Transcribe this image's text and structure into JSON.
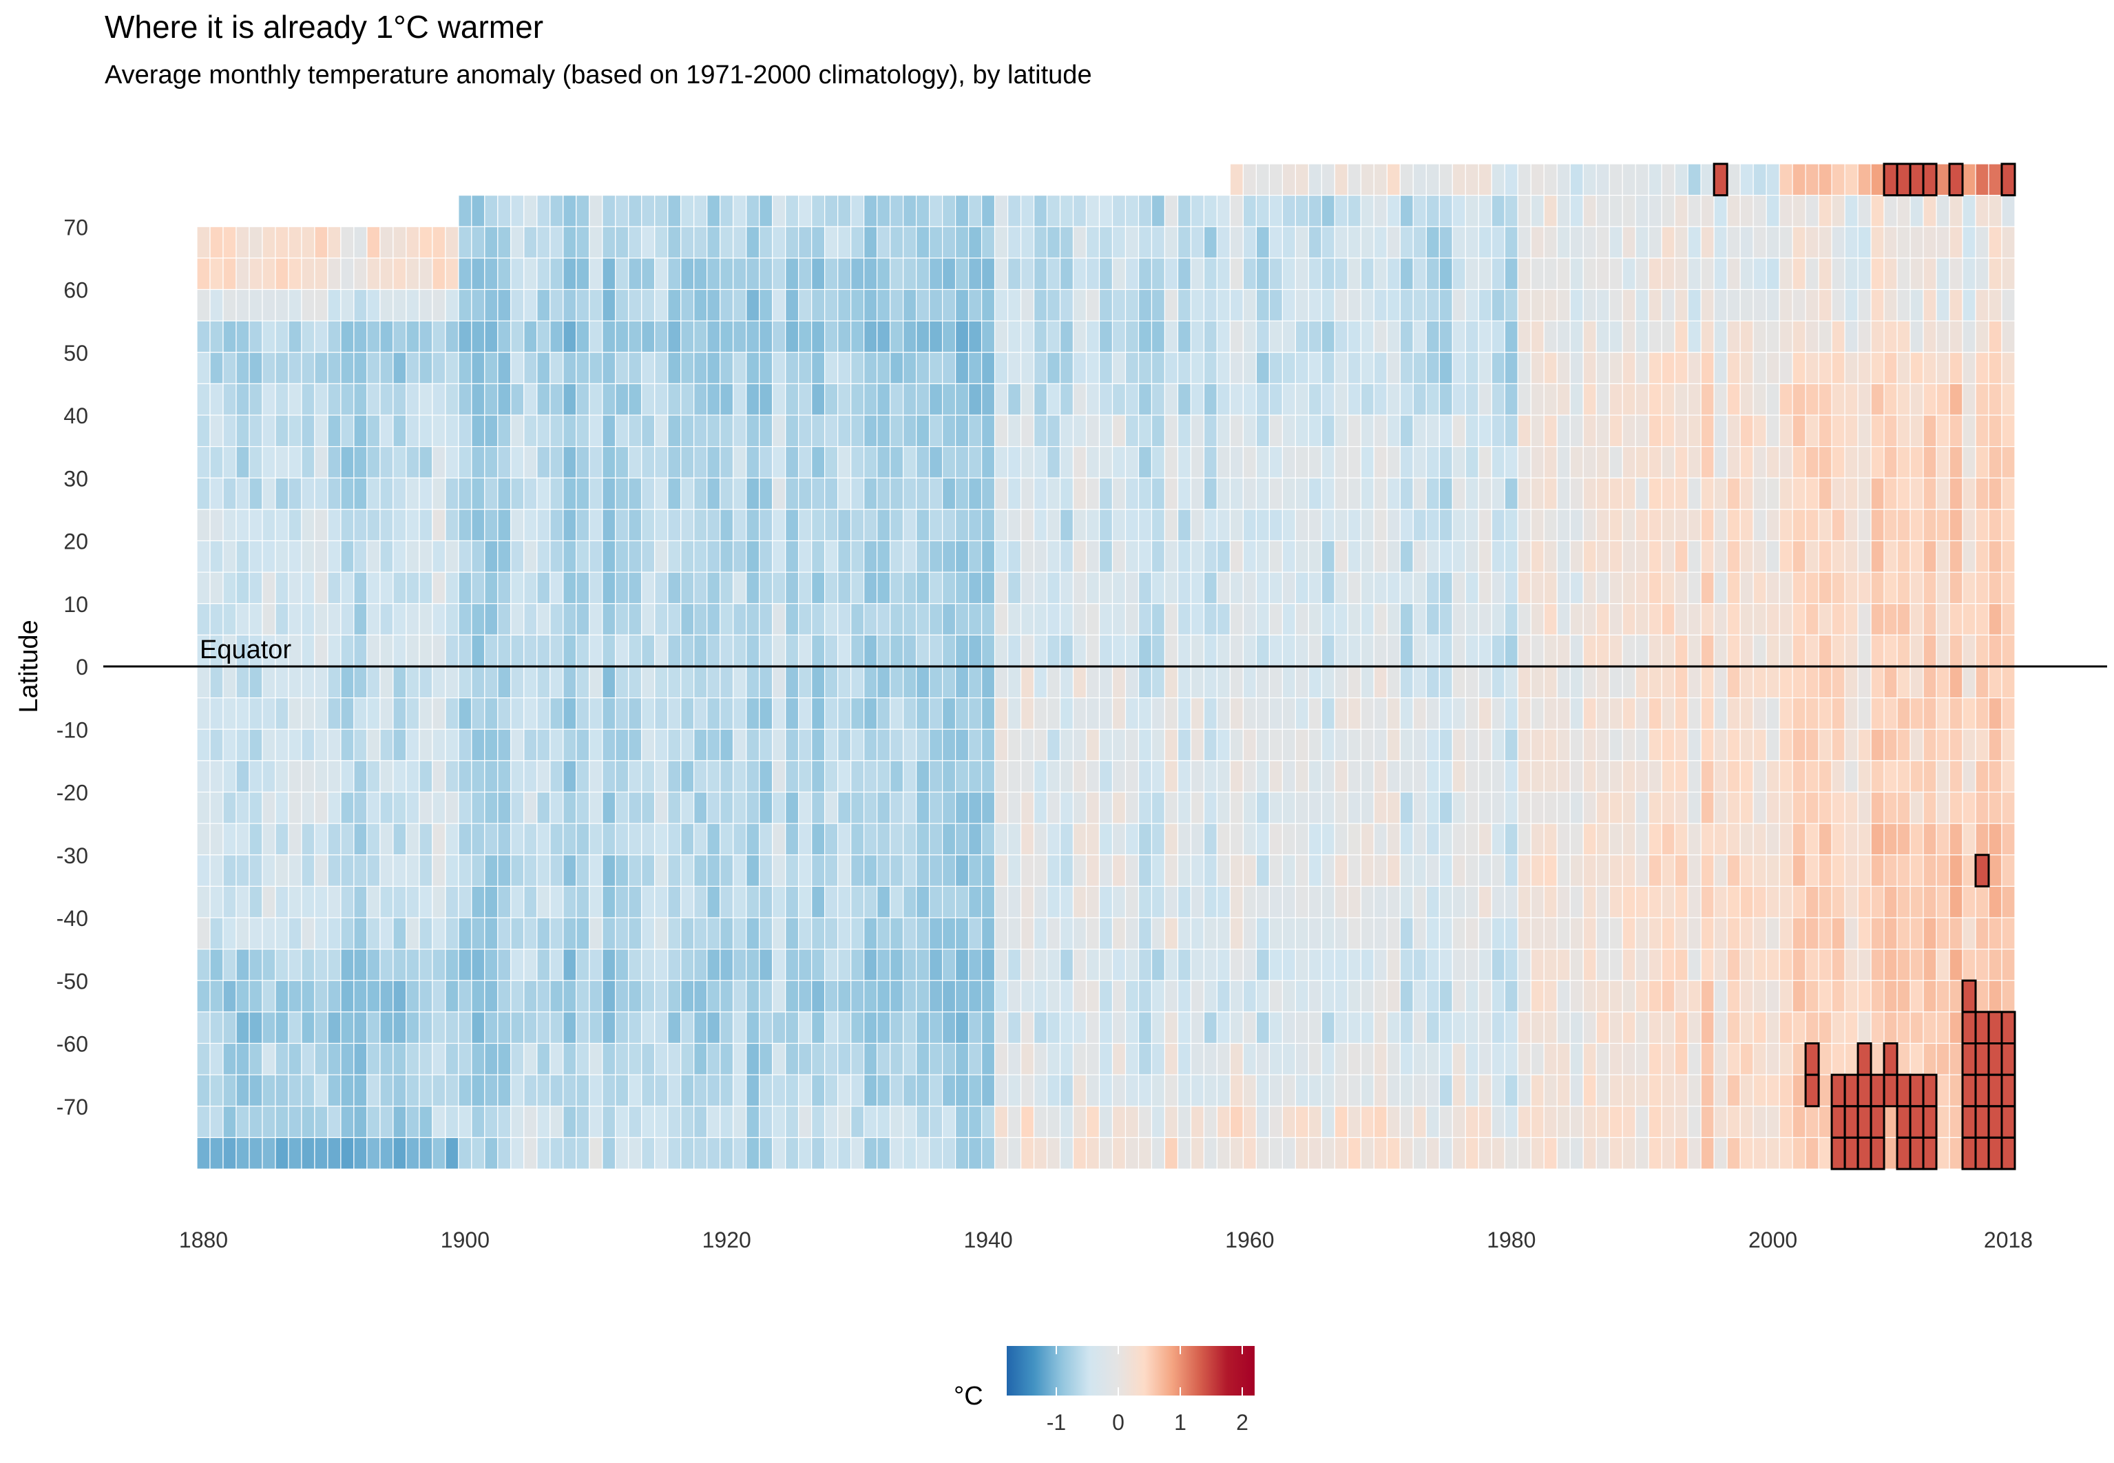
{
  "chart_data": {
    "type": "heatmap",
    "title": "Where it is already 1°C warmer",
    "subtitle": "Average monthly temperature anomaly (based on 1971-2000 climatology), by latitude",
    "xlabel": "",
    "ylabel": "Latitude",
    "x_ticks": [
      1880,
      1900,
      1920,
      1940,
      1960,
      1980,
      2000,
      2018
    ],
    "y_ticks": [
      70,
      60,
      50,
      40,
      30,
      20,
      10,
      0,
      -10,
      -20,
      -30,
      -40,
      -50,
      -60,
      -70
    ],
    "xlim": [
      1880,
      2018
    ],
    "ylim": [
      -80,
      80
    ],
    "year_range": [
      1880,
      2018
    ],
    "latitude_band_centers": [
      77.5,
      72.5,
      67.5,
      62.5,
      57.5,
      52.5,
      47.5,
      42.5,
      37.5,
      32.5,
      27.5,
      22.5,
      17.5,
      12.5,
      7.5,
      2.5,
      -2.5,
      -7.5,
      -12.5,
      -17.5,
      -22.5,
      -27.5,
      -32.5,
      -37.5,
      -42.5,
      -47.5,
      -52.5,
      -57.5,
      -62.5,
      -67.5,
      -72.5,
      -77.5
    ],
    "anomaly_by_band": [
      {
        "lat": 77.5,
        "period_means": [
          [
            1880,
            1958,
            null
          ],
          [
            1959,
            1985,
            0.0
          ],
          [
            1986,
            2000,
            -0.2
          ],
          [
            2001,
            2018,
            1.0
          ]
        ]
      },
      {
        "lat": 72.5,
        "period_means": [
          [
            1880,
            1899,
            null
          ],
          [
            1900,
            1940,
            -0.4
          ],
          [
            1941,
            1980,
            -0.3
          ],
          [
            1981,
            2018,
            0.0
          ]
        ]
      },
      {
        "lat": 67.5,
        "period_means": [
          [
            1880,
            1899,
            0.2
          ],
          [
            1900,
            1940,
            -0.4
          ],
          [
            1941,
            1980,
            -0.3
          ],
          [
            1981,
            2018,
            0.0
          ]
        ]
      },
      {
        "lat": 62.5,
        "period_means": [
          [
            1880,
            1899,
            0.2
          ],
          [
            1900,
            1940,
            -0.5
          ],
          [
            1941,
            1980,
            -0.3
          ],
          [
            1981,
            2018,
            0.0
          ]
        ]
      },
      {
        "lat": 57.5,
        "period_means": [
          [
            1880,
            1899,
            -0.2
          ],
          [
            1900,
            1940,
            -0.5
          ],
          [
            1941,
            1980,
            -0.3
          ],
          [
            1981,
            2018,
            0.0
          ]
        ]
      },
      {
        "lat": 52.5,
        "period_means": [
          [
            1880,
            1899,
            -0.5
          ],
          [
            1900,
            1940,
            -0.6
          ],
          [
            1941,
            1980,
            -0.3
          ],
          [
            1981,
            2018,
            0.1
          ]
        ]
      },
      {
        "lat": 47.5,
        "period_means": [
          [
            1880,
            1899,
            -0.5
          ],
          [
            1900,
            1940,
            -0.5
          ],
          [
            1941,
            1980,
            -0.3
          ],
          [
            1981,
            2018,
            0.2
          ]
        ]
      },
      {
        "lat": 42.5,
        "period_means": [
          [
            1880,
            1899,
            -0.4
          ],
          [
            1900,
            1940,
            -0.5
          ],
          [
            1941,
            1980,
            -0.3
          ],
          [
            1981,
            2018,
            0.3
          ]
        ]
      },
      {
        "lat": 37.5,
        "period_means": [
          [
            1880,
            1899,
            -0.4
          ],
          [
            1900,
            1940,
            -0.4
          ],
          [
            1941,
            1980,
            -0.2
          ],
          [
            1981,
            2018,
            0.3
          ]
        ]
      },
      {
        "lat": 32.5,
        "period_means": [
          [
            1880,
            1899,
            -0.4
          ],
          [
            1900,
            1940,
            -0.4
          ],
          [
            1941,
            1980,
            -0.2
          ],
          [
            1981,
            2018,
            0.3
          ]
        ]
      },
      {
        "lat": 27.5,
        "period_means": [
          [
            1880,
            1899,
            -0.4
          ],
          [
            1900,
            1940,
            -0.4
          ],
          [
            1941,
            1980,
            -0.2
          ],
          [
            1981,
            2018,
            0.3
          ]
        ]
      },
      {
        "lat": 22.5,
        "period_means": [
          [
            1880,
            1899,
            -0.3
          ],
          [
            1900,
            1940,
            -0.4
          ],
          [
            1941,
            1980,
            -0.2
          ],
          [
            1981,
            2018,
            0.3
          ]
        ]
      },
      {
        "lat": 17.5,
        "period_means": [
          [
            1880,
            1899,
            -0.3
          ],
          [
            1900,
            1940,
            -0.4
          ],
          [
            1941,
            1980,
            -0.2
          ],
          [
            1981,
            2018,
            0.3
          ]
        ]
      },
      {
        "lat": 12.5,
        "period_means": [
          [
            1880,
            1899,
            -0.3
          ],
          [
            1900,
            1940,
            -0.4
          ],
          [
            1941,
            1980,
            -0.2
          ],
          [
            1981,
            2018,
            0.3
          ]
        ]
      },
      {
        "lat": 7.5,
        "period_means": [
          [
            1880,
            1899,
            -0.3
          ],
          [
            1900,
            1940,
            -0.4
          ],
          [
            1941,
            1980,
            -0.2
          ],
          [
            1981,
            2018,
            0.3
          ]
        ]
      },
      {
        "lat": 2.5,
        "period_means": [
          [
            1880,
            1899,
            -0.3
          ],
          [
            1900,
            1940,
            -0.4
          ],
          [
            1941,
            1980,
            -0.2
          ],
          [
            1981,
            2018,
            0.3
          ]
        ]
      },
      {
        "lat": -2.5,
        "period_means": [
          [
            1880,
            1899,
            -0.3
          ],
          [
            1900,
            1940,
            -0.4
          ],
          [
            1941,
            1980,
            -0.1
          ],
          [
            1981,
            2018,
            0.3
          ]
        ]
      },
      {
        "lat": -7.5,
        "period_means": [
          [
            1880,
            1899,
            -0.3
          ],
          [
            1900,
            1940,
            -0.4
          ],
          [
            1941,
            1980,
            -0.1
          ],
          [
            1981,
            2018,
            0.3
          ]
        ]
      },
      {
        "lat": -12.5,
        "period_means": [
          [
            1880,
            1899,
            -0.3
          ],
          [
            1900,
            1940,
            -0.4
          ],
          [
            1941,
            1980,
            -0.1
          ],
          [
            1981,
            2018,
            0.3
          ]
        ]
      },
      {
        "lat": -17.5,
        "period_means": [
          [
            1880,
            1899,
            -0.3
          ],
          [
            1900,
            1940,
            -0.4
          ],
          [
            1941,
            1980,
            -0.1
          ],
          [
            1981,
            2018,
            0.3
          ]
        ]
      },
      {
        "lat": -22.5,
        "period_means": [
          [
            1880,
            1899,
            -0.3
          ],
          [
            1900,
            1940,
            -0.4
          ],
          [
            1941,
            1980,
            -0.1
          ],
          [
            1981,
            2018,
            0.3
          ]
        ]
      },
      {
        "lat": -27.5,
        "period_means": [
          [
            1880,
            1899,
            -0.3
          ],
          [
            1900,
            1940,
            -0.4
          ],
          [
            1941,
            1980,
            -0.1
          ],
          [
            1981,
            2018,
            0.4
          ]
        ]
      },
      {
        "lat": -32.5,
        "period_means": [
          [
            1880,
            1899,
            -0.3
          ],
          [
            1900,
            1940,
            -0.4
          ],
          [
            1941,
            1980,
            -0.1
          ],
          [
            1981,
            2018,
            0.4
          ]
        ]
      },
      {
        "lat": -37.5,
        "period_means": [
          [
            1880,
            1899,
            -0.3
          ],
          [
            1900,
            1940,
            -0.4
          ],
          [
            1941,
            1980,
            -0.1
          ],
          [
            1981,
            2018,
            0.4
          ]
        ]
      },
      {
        "lat": -42.5,
        "period_means": [
          [
            1880,
            1899,
            -0.3
          ],
          [
            1900,
            1940,
            -0.4
          ],
          [
            1941,
            1980,
            -0.1
          ],
          [
            1981,
            2018,
            0.4
          ]
        ]
      },
      {
        "lat": -47.5,
        "period_means": [
          [
            1880,
            1899,
            -0.5
          ],
          [
            1900,
            1940,
            -0.5
          ],
          [
            1941,
            1980,
            -0.2
          ],
          [
            1981,
            2018,
            0.4
          ]
        ]
      },
      {
        "lat": -52.5,
        "period_means": [
          [
            1880,
            1899,
            -0.6
          ],
          [
            1900,
            1940,
            -0.5
          ],
          [
            1941,
            1980,
            -0.2
          ],
          [
            1981,
            2018,
            0.4
          ]
        ]
      },
      {
        "lat": -57.5,
        "period_means": [
          [
            1880,
            1899,
            -0.6
          ],
          [
            1900,
            1940,
            -0.5
          ],
          [
            1941,
            1980,
            -0.2
          ],
          [
            1981,
            2018,
            0.4
          ]
        ]
      },
      {
        "lat": -62.5,
        "period_means": [
          [
            1880,
            1899,
            -0.5
          ],
          [
            1900,
            1940,
            -0.4
          ],
          [
            1941,
            1980,
            -0.1
          ],
          [
            1981,
            2018,
            0.4
          ]
        ]
      },
      {
        "lat": -67.5,
        "period_means": [
          [
            1880,
            1899,
            -0.5
          ],
          [
            1900,
            1940,
            -0.4
          ],
          [
            1941,
            1980,
            -0.1
          ],
          [
            1981,
            2018,
            0.4
          ]
        ]
      },
      {
        "lat": -72.5,
        "period_means": [
          [
            1880,
            1899,
            -0.5
          ],
          [
            1900,
            1940,
            -0.3
          ],
          [
            1941,
            1980,
            0.1
          ],
          [
            1981,
            2018,
            0.4
          ]
        ]
      },
      {
        "lat": -77.5,
        "period_means": [
          [
            1880,
            1899,
            -0.9
          ],
          [
            1900,
            1940,
            -0.3
          ],
          [
            1941,
            1980,
            0.1
          ],
          [
            1981,
            2018,
            0.4
          ]
        ]
      }
    ],
    "warm_cells_outlined": [
      {
        "lat": 77.5,
        "years": [
          1996,
          2009,
          2010,
          2011,
          2012,
          2014,
          2018
        ]
      },
      {
        "lat": -32.5,
        "years": [
          2016
        ]
      },
      {
        "lat": -52.5,
        "years": [
          2015
        ]
      },
      {
        "lat": -57.5,
        "years": [
          2015,
          2016,
          2017,
          2018
        ]
      },
      {
        "lat": -62.5,
        "years": [
          2003,
          2007,
          2009,
          2015,
          2016,
          2017,
          2018
        ]
      },
      {
        "lat": -67.5,
        "years": [
          2003,
          2005,
          2006,
          2007,
          2008,
          2009,
          2010,
          2011,
          2012,
          2015,
          2016,
          2017,
          2018
        ]
      },
      {
        "lat": -72.5,
        "years": [
          2005,
          2006,
          2007,
          2008,
          2010,
          2011,
          2012,
          2015,
          2016,
          2017,
          2018
        ]
      },
      {
        "lat": -77.5,
        "years": [
          2005,
          2006,
          2007,
          2008,
          2010,
          2011,
          2012,
          2015,
          2016,
          2017,
          2018
        ]
      }
    ],
    "reference_line": {
      "y": 0,
      "label": "Equator"
    },
    "legend": {
      "title": "°C",
      "ticks": [
        -1,
        0,
        1,
        2
      ],
      "range": [
        -1.8,
        2.2
      ],
      "placement": "bottom",
      "colors": [
        "#2166ac",
        "#4393c3",
        "#92c5de",
        "#d1e5f0",
        "#e4e4e4",
        "#fddbc7",
        "#f4a582",
        "#d6604d",
        "#b2182b",
        "#a50026"
      ]
    },
    "grid": false
  }
}
